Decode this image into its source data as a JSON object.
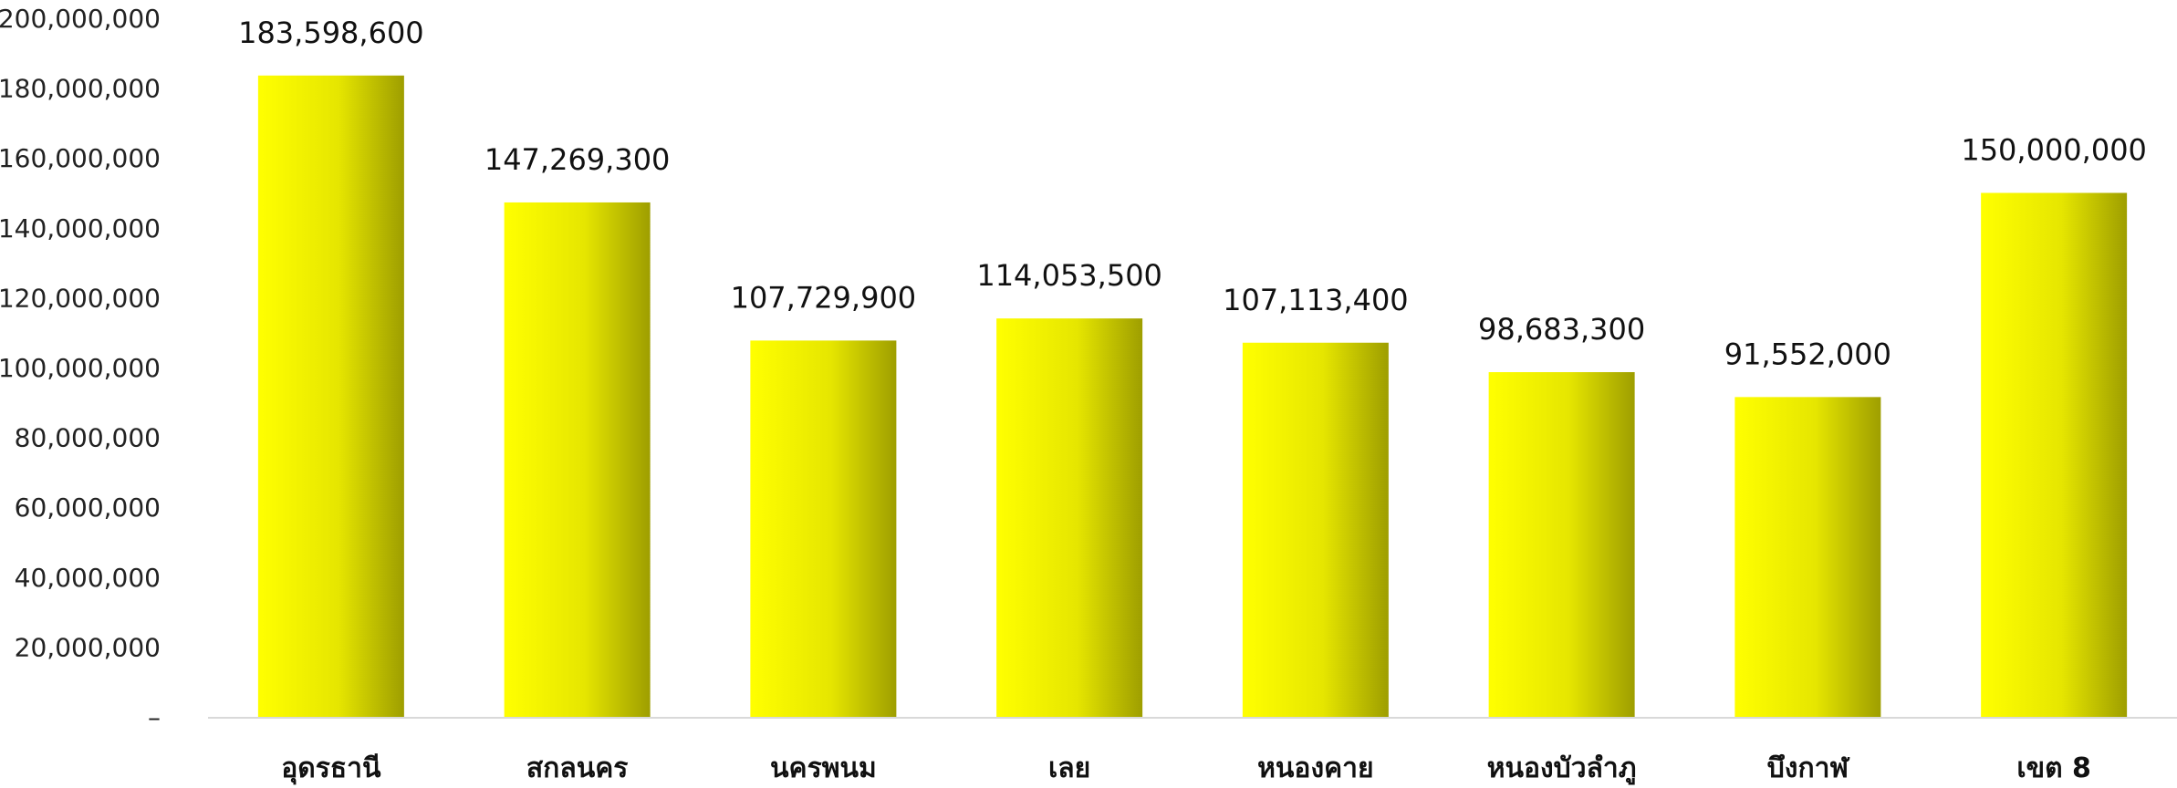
{
  "chart_data": {
    "type": "bar",
    "categories": [
      "อุดรธานี",
      "สกลนคร",
      "นครพนม",
      "เลย",
      "หนองคาย",
      "หนองบัวลำภู",
      "บึงกาฬ",
      "เขต 8"
    ],
    "values": [
      183598600,
      147269300,
      107729900,
      114053500,
      107113400,
      98683300,
      91552000,
      150000000
    ],
    "value_labels": [
      "183,598,600",
      "147,269,300",
      "107,729,900",
      "114,053,500",
      "107,113,400",
      "98,683,300",
      "91,552,000",
      "150,000,000"
    ],
    "y_ticks": [
      0,
      20000000,
      40000000,
      60000000,
      80000000,
      100000000,
      120000000,
      140000000,
      160000000,
      180000000,
      200000000
    ],
    "y_tick_labels": [
      "–",
      "20,000,000",
      "40,000,000",
      "60,000,000",
      "80,000,000",
      "100,000,000",
      "120,000,000",
      "140,000,000",
      "160,000,000",
      "180,000,000",
      "200,000,000"
    ],
    "ylim": [
      0,
      200000000
    ],
    "title": "",
    "xlabel": "",
    "ylabel": "",
    "grid": false,
    "legend": "none",
    "colors": {
      "bar_light": "#ffff00",
      "bar_dark": "#9e9e00",
      "axis": "#d9d9d9"
    }
  }
}
